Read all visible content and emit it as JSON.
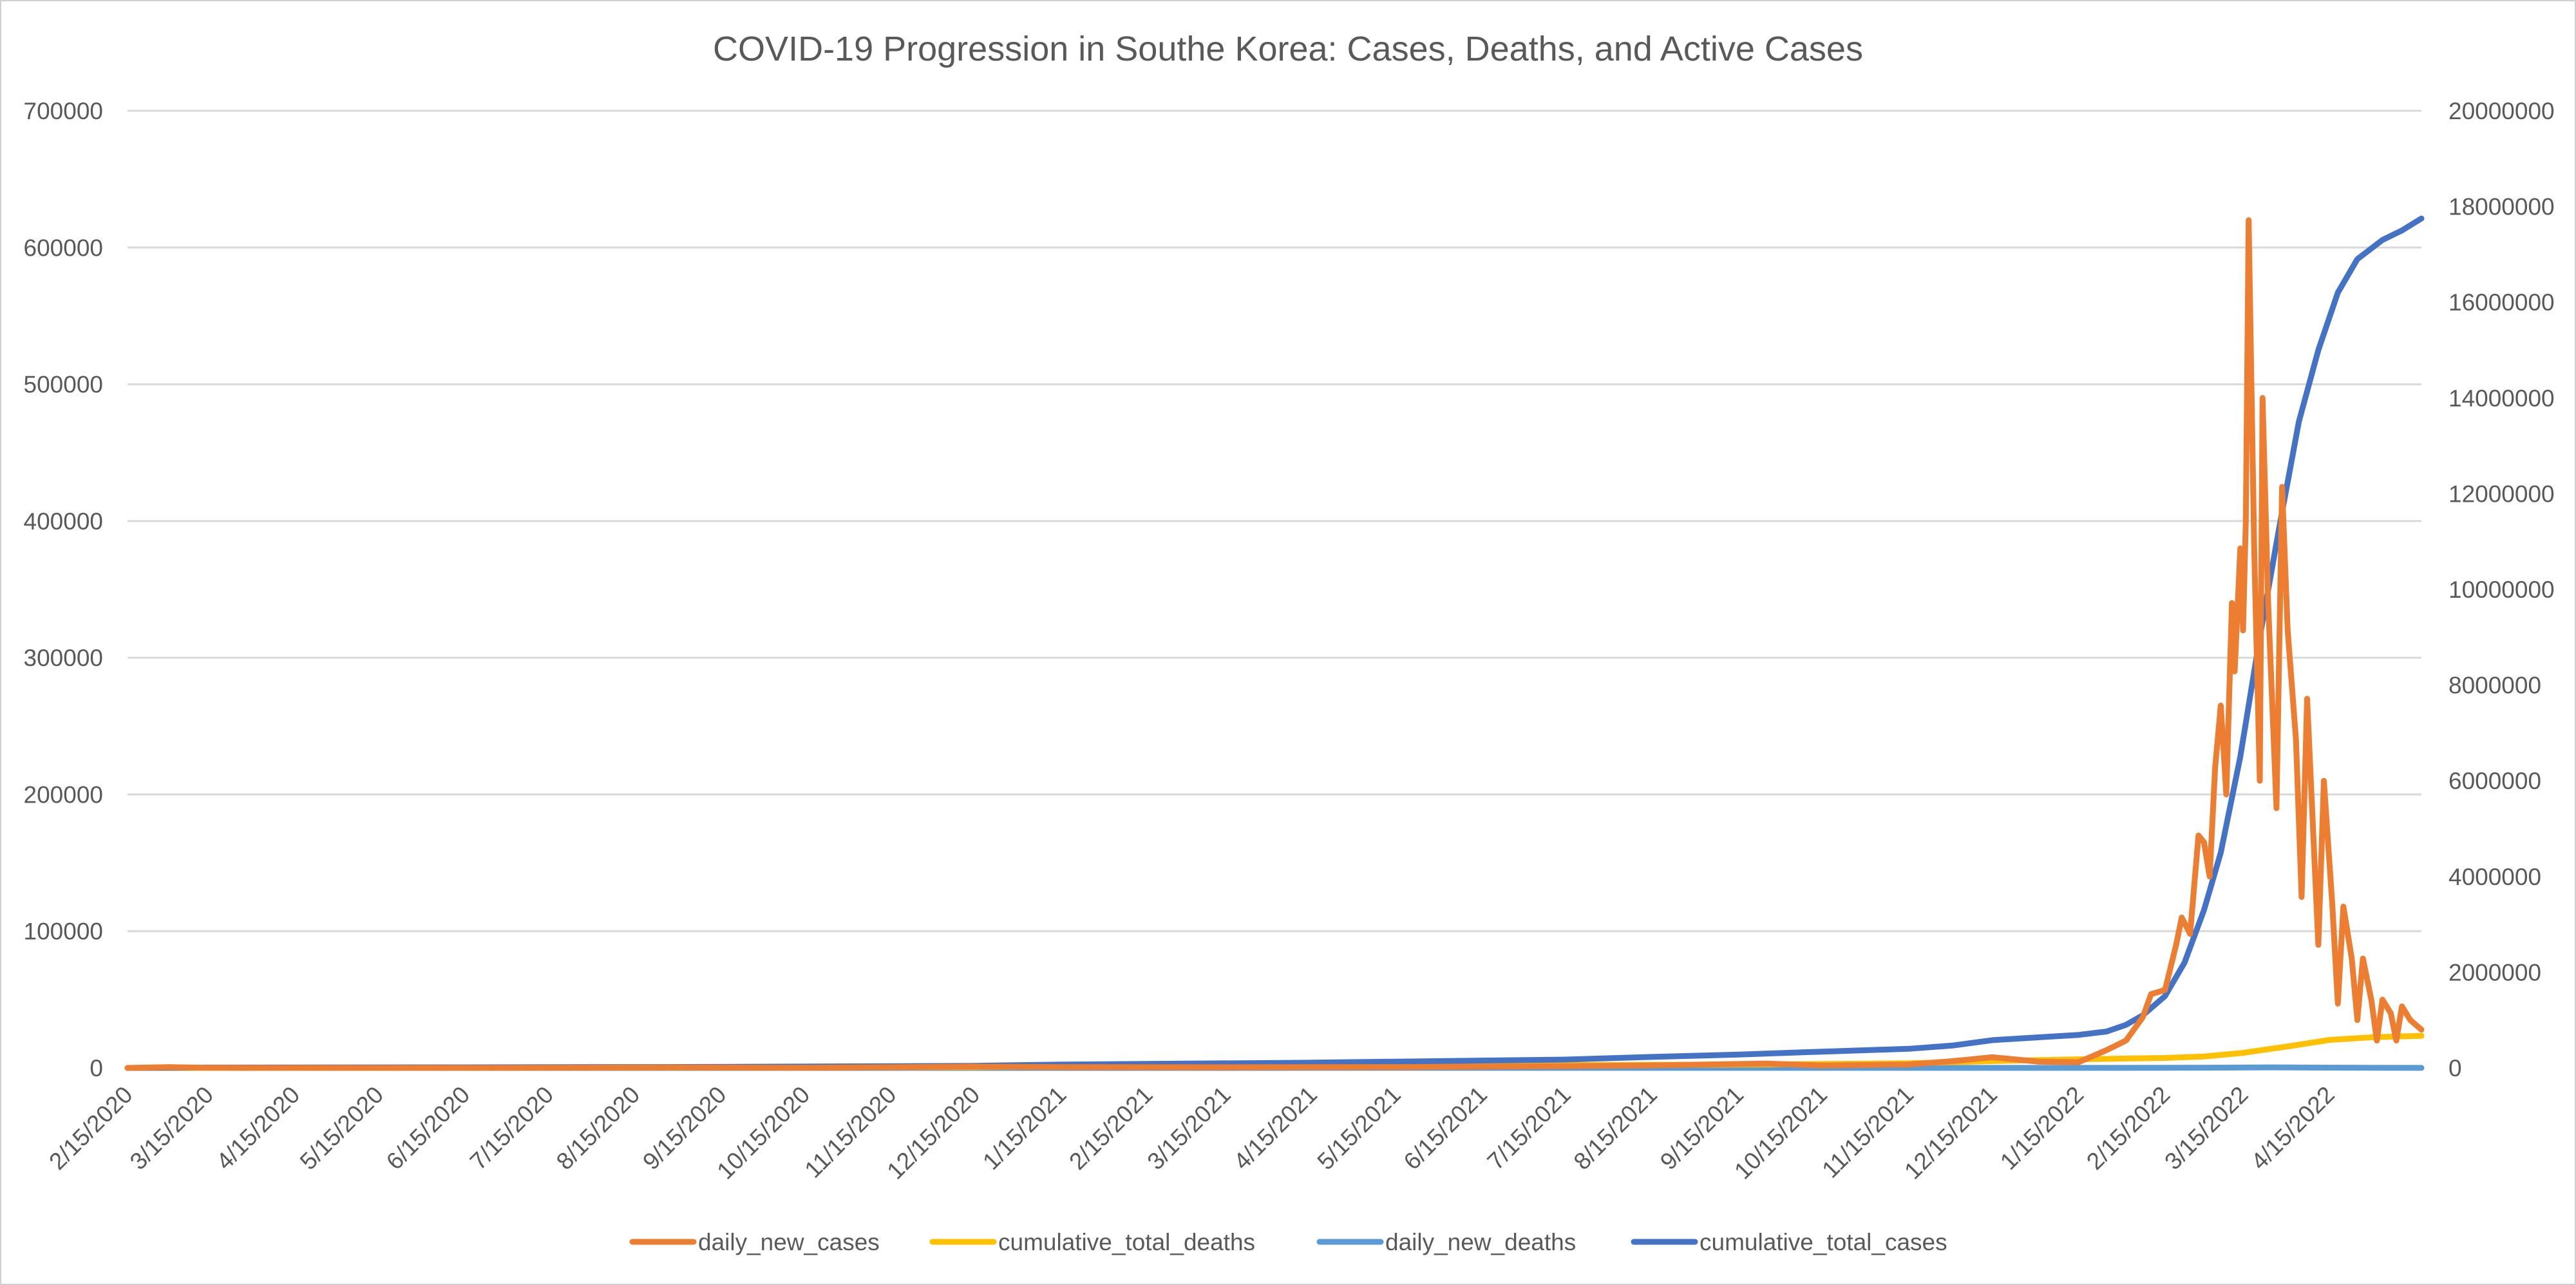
{
  "chart_data": {
    "type": "line",
    "title": "COVID-19 Progression in Southe Korea: Cases, Deaths, and Active Cases",
    "xlabel": "",
    "ylabel": "",
    "x_range": [
      "2020-02-15",
      "2022-05-18"
    ],
    "x_tick_labels": [
      "2/15/2020",
      "3/15/2020",
      "4/15/2020",
      "5/15/2020",
      "6/15/2020",
      "7/15/2020",
      "8/15/2020",
      "9/15/2020",
      "10/15/2020",
      "11/15/2020",
      "12/15/2020",
      "1/15/2021",
      "2/15/2021",
      "3/15/2021",
      "4/15/2021",
      "5/15/2021",
      "6/15/2021",
      "7/15/2021",
      "8/15/2021",
      "9/15/2021",
      "10/15/2021",
      "11/15/2021",
      "12/15/2021",
      "1/15/2022",
      "2/15/2022",
      "3/15/2022",
      "4/15/2022"
    ],
    "y_left": {
      "ylim": [
        0,
        700000
      ],
      "ticks": [
        "0",
        "100000",
        "200000",
        "300000",
        "400000",
        "500000",
        "600000",
        "700000"
      ]
    },
    "y_right": {
      "ylim": [
        0,
        20000000
      ],
      "ticks": [
        "0",
        "2000000",
        "4000000",
        "6000000",
        "8000000",
        "10000000",
        "12000000",
        "14000000",
        "16000000",
        "18000000",
        "20000000"
      ]
    },
    "grid": true,
    "legend_position": "bottom",
    "series": [
      {
        "name": "daily_new_cases",
        "axis": "left",
        "color": "#ed7d31",
        "points": [
          [
            "2020-02-15",
            0
          ],
          [
            "2020-03-01",
            600
          ],
          [
            "2020-03-15",
            100
          ],
          [
            "2020-06-15",
            50
          ],
          [
            "2020-08-15",
            300
          ],
          [
            "2020-08-28",
            440
          ],
          [
            "2020-10-15",
            90
          ],
          [
            "2020-12-15",
            1000
          ],
          [
            "2021-01-15",
            600
          ],
          [
            "2021-03-15",
            450
          ],
          [
            "2021-05-15",
            650
          ],
          [
            "2021-07-15",
            1300
          ],
          [
            "2021-08-15",
            1900
          ],
          [
            "2021-09-25",
            3200
          ],
          [
            "2021-10-15",
            1800
          ],
          [
            "2021-11-15",
            2500
          ],
          [
            "2021-12-01",
            5000
          ],
          [
            "2021-12-15",
            7800
          ],
          [
            "2022-01-01",
            4500
          ],
          [
            "2022-01-15",
            4200
          ],
          [
            "2022-01-25",
            13000
          ],
          [
            "2022-02-01",
            20000
          ],
          [
            "2022-02-07",
            37000
          ],
          [
            "2022-02-10",
            54000
          ],
          [
            "2022-02-15",
            57000
          ],
          [
            "2022-02-19",
            90000
          ],
          [
            "2022-02-21",
            110000
          ],
          [
            "2022-02-24",
            98000
          ],
          [
            "2022-02-27",
            170000
          ],
          [
            "2022-03-01",
            165000
          ],
          [
            "2022-03-03",
            140000
          ],
          [
            "2022-03-05",
            220000
          ],
          [
            "2022-03-07",
            265000
          ],
          [
            "2022-03-09",
            200000
          ],
          [
            "2022-03-11",
            340000
          ],
          [
            "2022-03-12",
            290000
          ],
          [
            "2022-03-14",
            380000
          ],
          [
            "2022-03-15",
            320000
          ],
          [
            "2022-03-16",
            400000
          ],
          [
            "2022-03-17",
            620000
          ],
          [
            "2022-03-19",
            380000
          ],
          [
            "2022-03-21",
            210000
          ],
          [
            "2022-03-22",
            490000
          ],
          [
            "2022-03-24",
            340000
          ],
          [
            "2022-03-27",
            190000
          ],
          [
            "2022-03-29",
            425000
          ],
          [
            "2022-03-31",
            320000
          ],
          [
            "2022-04-03",
            240000
          ],
          [
            "2022-04-05",
            125000
          ],
          [
            "2022-04-07",
            270000
          ],
          [
            "2022-04-09",
            180000
          ],
          [
            "2022-04-11",
            90000
          ],
          [
            "2022-04-13",
            210000
          ],
          [
            "2022-04-16",
            120000
          ],
          [
            "2022-04-18",
            47000
          ],
          [
            "2022-04-20",
            118000
          ],
          [
            "2022-04-23",
            80000
          ],
          [
            "2022-04-25",
            35000
          ],
          [
            "2022-04-27",
            80000
          ],
          [
            "2022-04-30",
            50000
          ],
          [
            "2022-05-02",
            20000
          ],
          [
            "2022-05-04",
            50000
          ],
          [
            "2022-05-07",
            40000
          ],
          [
            "2022-05-09",
            20000
          ],
          [
            "2022-05-11",
            45000
          ],
          [
            "2022-05-14",
            35000
          ],
          [
            "2022-05-18",
            28000
          ]
        ]
      },
      {
        "name": "cumulative_total_deaths",
        "axis": "left",
        "color": "#ffc000",
        "points": [
          [
            "2020-02-15",
            0
          ],
          [
            "2020-12-15",
            600
          ],
          [
            "2021-03-15",
            1700
          ],
          [
            "2021-06-15",
            2000
          ],
          [
            "2021-09-15",
            2400
          ],
          [
            "2021-11-15",
            3400
          ],
          [
            "2021-12-15",
            5000
          ],
          [
            "2022-01-15",
            6300
          ],
          [
            "2022-02-15",
            7300
          ],
          [
            "2022-03-01",
            8400
          ],
          [
            "2022-03-15",
            11000
          ],
          [
            "2022-04-01",
            16000
          ],
          [
            "2022-04-15",
            20500
          ],
          [
            "2022-05-01",
            22500
          ],
          [
            "2022-05-18",
            23500
          ]
        ]
      },
      {
        "name": "daily_new_deaths",
        "axis": "left",
        "color": "#5b9bd5",
        "points": [
          [
            "2020-02-15",
            0
          ],
          [
            "2021-12-15",
            60
          ],
          [
            "2022-02-15",
            100
          ],
          [
            "2022-03-15",
            300
          ],
          [
            "2022-03-25",
            430
          ],
          [
            "2022-04-10",
            250
          ],
          [
            "2022-05-18",
            40
          ]
        ]
      },
      {
        "name": "cumulative_total_cases",
        "axis": "right",
        "color": "#4472c4",
        "points": [
          [
            "2020-02-15",
            0
          ],
          [
            "2020-03-15",
            8000
          ],
          [
            "2020-06-15",
            12000
          ],
          [
            "2020-09-15",
            22000
          ],
          [
            "2020-12-15",
            45000
          ],
          [
            "2021-01-15",
            70000
          ],
          [
            "2021-04-15",
            110000
          ],
          [
            "2021-07-15",
            175000
          ],
          [
            "2021-08-15",
            230000
          ],
          [
            "2021-09-15",
            280000
          ],
          [
            "2021-10-15",
            340000
          ],
          [
            "2021-11-15",
            400000
          ],
          [
            "2021-12-01",
            470000
          ],
          [
            "2021-12-15",
            580000
          ],
          [
            "2022-01-01",
            640000
          ],
          [
            "2022-01-15",
            690000
          ],
          [
            "2022-01-25",
            760000
          ],
          [
            "2022-02-01",
            900000
          ],
          [
            "2022-02-07",
            1100000
          ],
          [
            "2022-02-15",
            1500000
          ],
          [
            "2022-02-22",
            2200000
          ],
          [
            "2022-03-01",
            3300000
          ],
          [
            "2022-03-07",
            4500000
          ],
          [
            "2022-03-14",
            6500000
          ],
          [
            "2022-03-21",
            9000000
          ],
          [
            "2022-03-28",
            11300000
          ],
          [
            "2022-04-04",
            13500000
          ],
          [
            "2022-04-11",
            15000000
          ],
          [
            "2022-04-18",
            16200000
          ],
          [
            "2022-04-25",
            16900000
          ],
          [
            "2022-05-04",
            17300000
          ],
          [
            "2022-05-11",
            17500000
          ],
          [
            "2022-05-18",
            17750000
          ]
        ]
      }
    ]
  }
}
